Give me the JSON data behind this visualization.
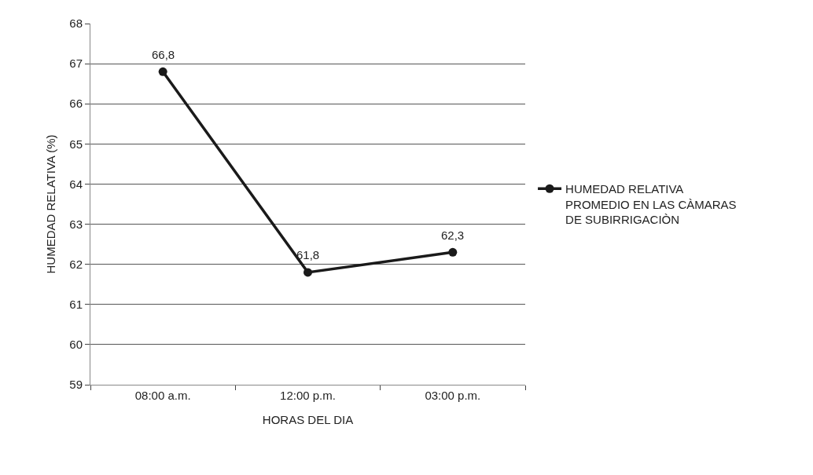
{
  "chart_data": {
    "type": "line",
    "xlabel": "HORAS DEL DIA",
    "ylabel": "HUMEDAD RELATIVA (%)",
    "categories": [
      "08:00 a.m.",
      "12:00 p.m.",
      "03:00 p.m."
    ],
    "series": [
      {
        "name": "HUMEDAD RELATIVA PROMEDIO EN LAS CÀMARAS DE SUBIRRIGACIÒN",
        "color": "#1a1a1a",
        "values": [
          66.8,
          61.8,
          62.3
        ],
        "value_labels": [
          "66,8",
          "61,8",
          "62,3"
        ]
      }
    ],
    "ylim": [
      59,
      68
    ],
    "yticks": [
      59,
      60,
      61,
      62,
      63,
      64,
      65,
      66,
      67,
      68
    ],
    "grid": "y",
    "legend": "right",
    "marker": "circle",
    "line_style": "solid"
  }
}
